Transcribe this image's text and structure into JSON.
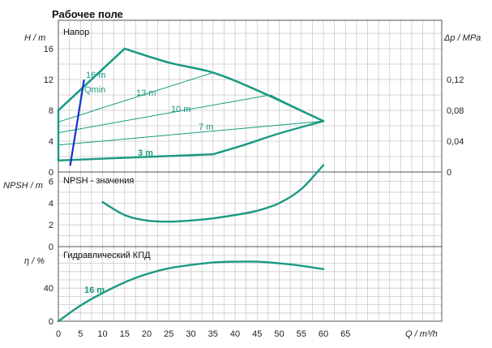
{
  "title": "Рабочее поле",
  "chart_data": [
    {
      "type": "line",
      "panel_label": "Напор",
      "ylabel_left": "H / m",
      "ylabel_right": "Δp / MPa",
      "xlim": [
        0,
        70
      ],
      "ylim": [
        0,
        20
      ],
      "yticks": [
        "0",
        "4",
        "8",
        "12",
        "16"
      ],
      "yticks_right": [
        "0",
        "0,04",
        "0,08",
        "0,12"
      ],
      "envelope": [
        [
          0,
          8
        ],
        [
          15,
          16
        ],
        [
          25,
          14.2
        ],
        [
          35,
          12.9
        ],
        [
          45,
          10.6
        ],
        [
          60,
          6.6
        ],
        [
          50,
          5.0
        ],
        [
          42,
          3.5
        ],
        [
          35,
          2.3
        ],
        [
          0,
          1.5
        ]
      ],
      "series": [
        {
          "name": "16 m",
          "x": [
            0,
            15,
            25,
            35,
            45,
            60
          ],
          "y": [
            8,
            16,
            14.2,
            12.9,
            10.6,
            6.6
          ],
          "style": "thick"
        },
        {
          "name": "13 m",
          "x": [
            0,
            35
          ],
          "y": [
            6.5,
            12.9
          ],
          "style": "thin"
        },
        {
          "name": "10 m",
          "x": [
            0,
            48,
            60
          ],
          "y": [
            5.1,
            10.0,
            6.6
          ],
          "style": "thin"
        },
        {
          "name": "7 m",
          "x": [
            0,
            60
          ],
          "y": [
            3.5,
            6.6
          ],
          "style": "thin"
        },
        {
          "name": "3 m",
          "x": [
            0,
            35,
            42,
            50,
            60
          ],
          "y": [
            1.5,
            2.3,
            3.5,
            5.0,
            6.6
          ],
          "style": "thick"
        }
      ],
      "qmin_label": "Qmin",
      "qmin_line": {
        "x": [
          2.7,
          5.8
        ],
        "y": [
          0.9,
          11.9
        ]
      }
    },
    {
      "type": "line",
      "panel_label": "NPSH - значения",
      "ylabel_left": "NPSH / m",
      "xlim": [
        0,
        70
      ],
      "ylim": [
        0,
        8
      ],
      "yticks": [
        "0",
        "2",
        "4",
        "6"
      ],
      "series": [
        {
          "x": [
            10,
            15,
            20,
            25,
            30,
            35,
            40,
            45,
            50,
            55,
            60
          ],
          "y": [
            4.1,
            2.9,
            2.4,
            2.3,
            2.4,
            2.6,
            2.9,
            3.3,
            4.0,
            5.3,
            7.5
          ]
        }
      ]
    },
    {
      "type": "line",
      "panel_label": "Гидравлический КПД",
      "ylabel_left": "η / %",
      "xlim": [
        0,
        70
      ],
      "ylim": [
        0,
        80
      ],
      "yticks": [
        "0",
        "40"
      ],
      "xlabel": "Q / m³/h",
      "xticks": [
        "0",
        "5",
        "10",
        "15",
        "20",
        "25",
        "30",
        "35",
        "40",
        "45",
        "50",
        "55",
        "60",
        "65"
      ],
      "series": [
        {
          "name": "16 m",
          "x": [
            0,
            5,
            10,
            15,
            20,
            25,
            30,
            35,
            40,
            45,
            50,
            55,
            60
          ],
          "y": [
            0,
            19,
            34,
            47,
            57,
            64,
            68,
            71,
            72,
            72,
            70,
            67,
            63
          ]
        }
      ]
    }
  ]
}
